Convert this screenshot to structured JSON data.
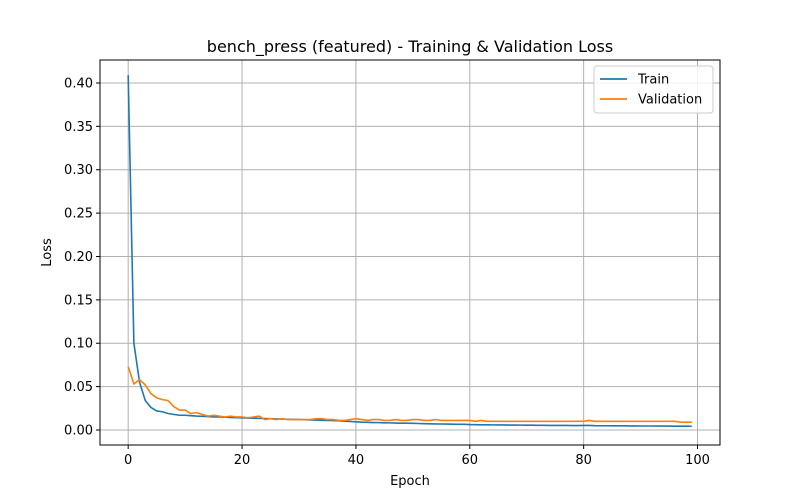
{
  "chart_data": {
    "type": "line",
    "title": "bench_press (featured) - Training & Validation Loss",
    "xlabel": "Epoch",
    "ylabel": "Loss",
    "xlim": [
      -4.95,
      103.95
    ],
    "ylim": [
      -0.0173,
      0.4265
    ],
    "xticks": [
      0,
      20,
      40,
      60,
      80,
      100
    ],
    "yticks": [
      0.0,
      0.05,
      0.1,
      0.15,
      0.2,
      0.25,
      0.3,
      0.35,
      0.4
    ],
    "xtick_labels": [
      "0",
      "20",
      "40",
      "60",
      "80",
      "100"
    ],
    "ytick_labels": [
      "0.00",
      "0.05",
      "0.10",
      "0.15",
      "0.20",
      "0.25",
      "0.30",
      "0.35",
      "0.40"
    ],
    "grid": true,
    "legend_position": "upper-right",
    "x": [
      0,
      1,
      2,
      3,
      4,
      5,
      6,
      7,
      8,
      9,
      10,
      11,
      12,
      13,
      14,
      15,
      16,
      17,
      18,
      19,
      20,
      21,
      22,
      23,
      24,
      25,
      26,
      27,
      28,
      29,
      30,
      31,
      32,
      33,
      34,
      35,
      36,
      37,
      38,
      39,
      40,
      41,
      42,
      43,
      44,
      45,
      46,
      47,
      48,
      49,
      50,
      51,
      52,
      53,
      54,
      55,
      56,
      57,
      58,
      59,
      60,
      61,
      62,
      63,
      64,
      65,
      66,
      67,
      68,
      69,
      70,
      71,
      72,
      73,
      74,
      75,
      76,
      77,
      78,
      79,
      80,
      81,
      82,
      83,
      84,
      85,
      86,
      87,
      88,
      89,
      90,
      91,
      92,
      93,
      94,
      95,
      96,
      97,
      98,
      99
    ],
    "series": [
      {
        "name": "Train",
        "color": "#1f77b4",
        "values": [
          0.409,
          0.1,
          0.055,
          0.034,
          0.026,
          0.022,
          0.021,
          0.019,
          0.018,
          0.017,
          0.017,
          0.0165,
          0.016,
          0.0158,
          0.0155,
          0.015,
          0.015,
          0.0148,
          0.0145,
          0.0142,
          0.014,
          0.0138,
          0.0136,
          0.0134,
          0.0132,
          0.013,
          0.0128,
          0.0126,
          0.0124,
          0.0122,
          0.012,
          0.0118,
          0.0116,
          0.0114,
          0.0112,
          0.011,
          0.0108,
          0.0105,
          0.0102,
          0.0098,
          0.0094,
          0.009,
          0.0088,
          0.0086,
          0.0085,
          0.0083,
          0.0082,
          0.008,
          0.0079,
          0.0078,
          0.0077,
          0.0075,
          0.0073,
          0.0071,
          0.007,
          0.0069,
          0.0068,
          0.0067,
          0.0066,
          0.0065,
          0.0062,
          0.0061,
          0.006,
          0.006,
          0.0059,
          0.0058,
          0.0058,
          0.0057,
          0.0057,
          0.0056,
          0.0055,
          0.0055,
          0.0054,
          0.0054,
          0.0053,
          0.0053,
          0.0052,
          0.0052,
          0.0051,
          0.0051,
          0.0052,
          0.0053,
          0.005,
          0.0049,
          0.0049,
          0.0048,
          0.0048,
          0.0048,
          0.0047,
          0.0047,
          0.0046,
          0.0046,
          0.0046,
          0.0045,
          0.0045,
          0.0045,
          0.0044,
          0.0044,
          0.0044,
          0.0043
        ]
      },
      {
        "name": "Validation",
        "color": "#ff7f0e",
        "values": [
          0.073,
          0.053,
          0.058,
          0.052,
          0.042,
          0.037,
          0.035,
          0.034,
          0.027,
          0.023,
          0.023,
          0.019,
          0.02,
          0.018,
          0.016,
          0.017,
          0.016,
          0.015,
          0.016,
          0.015,
          0.015,
          0.014,
          0.015,
          0.016,
          0.012,
          0.013,
          0.012,
          0.013,
          0.012,
          0.012,
          0.012,
          0.012,
          0.012,
          0.013,
          0.013,
          0.012,
          0.012,
          0.011,
          0.011,
          0.012,
          0.013,
          0.012,
          0.011,
          0.012,
          0.012,
          0.011,
          0.011,
          0.012,
          0.011,
          0.011,
          0.012,
          0.012,
          0.011,
          0.011,
          0.012,
          0.011,
          0.011,
          0.011,
          0.011,
          0.011,
          0.011,
          0.01,
          0.011,
          0.01,
          0.01,
          0.01,
          0.01,
          0.01,
          0.01,
          0.01,
          0.01,
          0.01,
          0.01,
          0.01,
          0.01,
          0.01,
          0.01,
          0.01,
          0.01,
          0.01,
          0.01,
          0.011,
          0.01,
          0.01,
          0.01,
          0.01,
          0.01,
          0.01,
          0.01,
          0.01,
          0.01,
          0.01,
          0.01,
          0.01,
          0.01,
          0.01,
          0.01,
          0.009,
          0.009,
          0.009
        ]
      }
    ]
  }
}
